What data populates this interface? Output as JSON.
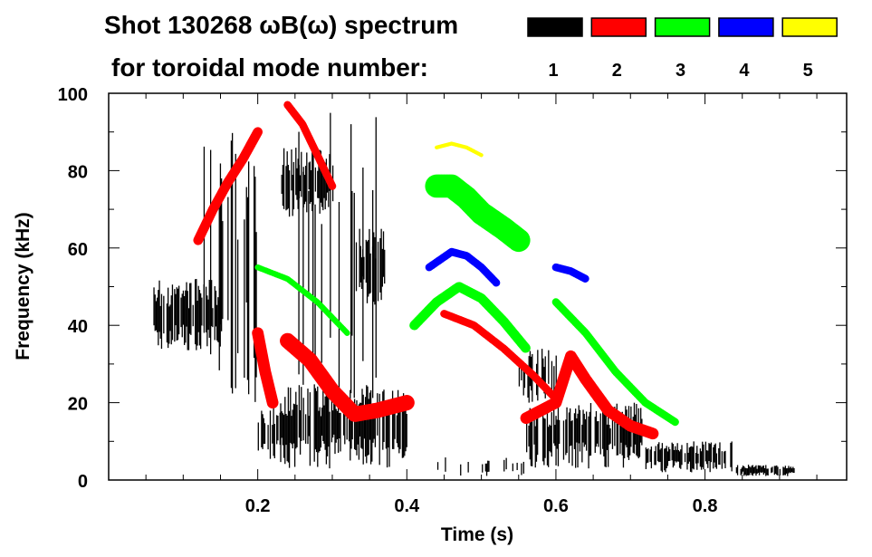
{
  "chart_data": {
    "type": "heatmap",
    "title": "Shot 130268 ωB(ω) spectrum",
    "subtitle": "for toroidal mode number:",
    "xlabel": "Time (s)",
    "ylabel": "Frequency (kHz)",
    "xlim": [
      0.0,
      0.99
    ],
    "ylim": [
      0,
      100
    ],
    "xticks": [
      {
        "v": 0.2,
        "label": "0.2"
      },
      {
        "v": 0.4,
        "label": "0.4"
      },
      {
        "v": 0.6,
        "label": "0.6"
      },
      {
        "v": 0.8,
        "label": "0.8"
      }
    ],
    "yticks": [
      {
        "v": 0,
        "label": "0"
      },
      {
        "v": 20,
        "label": "20"
      },
      {
        "v": 40,
        "label": "40"
      },
      {
        "v": 60,
        "label": "60"
      },
      {
        "v": 80,
        "label": "80"
      },
      {
        "v": 100,
        "label": "100"
      }
    ],
    "legend": [
      {
        "mode": "1",
        "color": "#000000"
      },
      {
        "mode": "2",
        "color": "#ff0000"
      },
      {
        "mode": "3",
        "color": "#00ff00"
      },
      {
        "mode": "4",
        "color": "#0000ff"
      },
      {
        "mode": "5",
        "color": "#ffff00"
      }
    ],
    "mode_lines": [
      {
        "mode": "2",
        "width_khz": 2.5,
        "points": [
          [
            0.12,
            62
          ],
          [
            0.14,
            70
          ],
          [
            0.16,
            77
          ],
          [
            0.18,
            83
          ],
          [
            0.2,
            90
          ]
        ]
      },
      {
        "mode": "2",
        "width_khz": 2,
        "points": [
          [
            0.24,
            97
          ],
          [
            0.26,
            92
          ],
          [
            0.28,
            84
          ],
          [
            0.3,
            76
          ]
        ]
      },
      {
        "mode": "2",
        "width_khz": 3,
        "points": [
          [
            0.2,
            38
          ],
          [
            0.21,
            28
          ],
          [
            0.22,
            20
          ]
        ]
      },
      {
        "mode": "2",
        "width_khz": 4,
        "points": [
          [
            0.24,
            36
          ],
          [
            0.27,
            31
          ],
          [
            0.3,
            23
          ],
          [
            0.33,
            17
          ],
          [
            0.36,
            18
          ],
          [
            0.4,
            20
          ]
        ]
      },
      {
        "mode": "2",
        "width_khz": 2,
        "points": [
          [
            0.45,
            43
          ],
          [
            0.49,
            40
          ],
          [
            0.53,
            34
          ],
          [
            0.57,
            27
          ],
          [
            0.6,
            21
          ]
        ]
      },
      {
        "mode": "2",
        "width_khz": 3,
        "points": [
          [
            0.56,
            16
          ],
          [
            0.6,
            20
          ],
          [
            0.62,
            32
          ],
          [
            0.64,
            26
          ],
          [
            0.67,
            18
          ],
          [
            0.7,
            14
          ],
          [
            0.73,
            12
          ]
        ]
      },
      {
        "mode": "3",
        "width_khz": 6,
        "points": [
          [
            0.44,
            76
          ],
          [
            0.46,
            76
          ],
          [
            0.48,
            73
          ],
          [
            0.5,
            69
          ],
          [
            0.53,
            65
          ],
          [
            0.55,
            62
          ]
        ]
      },
      {
        "mode": "3",
        "width_khz": 2.5,
        "points": [
          [
            0.41,
            40
          ],
          [
            0.44,
            46
          ],
          [
            0.47,
            50
          ],
          [
            0.5,
            47
          ],
          [
            0.53,
            41
          ],
          [
            0.56,
            34
          ]
        ]
      },
      {
        "mode": "3",
        "width_khz": 2,
        "points": [
          [
            0.6,
            46
          ],
          [
            0.64,
            38
          ],
          [
            0.68,
            28
          ],
          [
            0.72,
            20
          ],
          [
            0.76,
            15
          ]
        ]
      },
      {
        "mode": "3",
        "width_khz": 1.5,
        "points": [
          [
            0.2,
            55
          ],
          [
            0.24,
            52
          ],
          [
            0.28,
            46
          ],
          [
            0.32,
            38
          ]
        ]
      },
      {
        "mode": "4",
        "width_khz": 2,
        "points": [
          [
            0.43,
            55
          ],
          [
            0.46,
            59
          ],
          [
            0.48,
            58
          ],
          [
            0.5,
            55
          ],
          [
            0.52,
            51
          ]
        ]
      },
      {
        "mode": "4",
        "width_khz": 2,
        "points": [
          [
            0.6,
            55
          ],
          [
            0.62,
            54
          ],
          [
            0.64,
            52
          ]
        ]
      },
      {
        "mode": "5",
        "width_khz": 1,
        "points": [
          [
            0.44,
            86
          ],
          [
            0.46,
            87
          ],
          [
            0.48,
            86
          ],
          [
            0.5,
            84
          ]
        ]
      }
    ],
    "mode_patches": [
      {
        "mode": "1",
        "t": [
          0.06,
          0.15
        ],
        "f": [
          33,
          52
        ],
        "density": 0.9
      },
      {
        "mode": "1",
        "t": [
          0.12,
          0.2
        ],
        "f": [
          20,
          90
        ],
        "density": 0.35
      },
      {
        "mode": "1",
        "t": [
          0.2,
          0.23
        ],
        "f": [
          5,
          20
        ],
        "density": 0.8
      },
      {
        "mode": "1",
        "t": [
          0.23,
          0.4
        ],
        "f": [
          3,
          25
        ],
        "density": 0.8
      },
      {
        "mode": "1",
        "t": [
          0.23,
          0.3
        ],
        "f": [
          68,
          86
        ],
        "density": 0.8
      },
      {
        "mode": "1",
        "t": [
          0.33,
          0.37
        ],
        "f": [
          45,
          65
        ],
        "density": 0.7
      },
      {
        "mode": "1",
        "t": [
          0.25,
          0.36
        ],
        "f": [
          20,
          95
        ],
        "density": 0.15
      },
      {
        "mode": "1",
        "t": [
          0.56,
          0.72
        ],
        "f": [
          3,
          20
        ],
        "density": 0.75
      },
      {
        "mode": "1",
        "t": [
          0.72,
          0.84
        ],
        "f": [
          2,
          10
        ],
        "density": 0.8
      },
      {
        "mode": "1",
        "t": [
          0.84,
          0.92
        ],
        "f": [
          1,
          4
        ],
        "density": 0.85
      },
      {
        "mode": "1",
        "t": [
          0.55,
          0.6
        ],
        "f": [
          20,
          35
        ],
        "density": 0.5
      },
      {
        "mode": "1",
        "t": [
          0.4,
          0.56
        ],
        "f": [
          1,
          6
        ],
        "density": 0.15
      }
    ]
  }
}
